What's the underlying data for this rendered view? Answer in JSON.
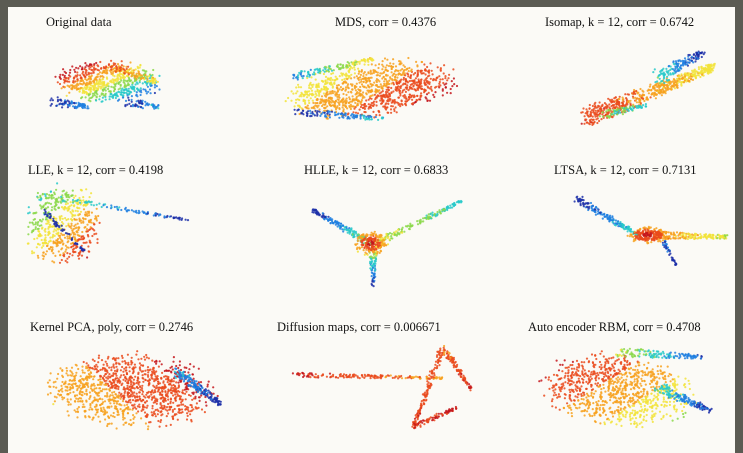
{
  "panels": [
    {
      "title": "Original data",
      "shape": "original"
    },
    {
      "title": "MDS, corr = 0.4376",
      "shape": "mds"
    },
    {
      "title": "Isomap, k = 12, corr = 0.6742",
      "shape": "isomap"
    },
    {
      "title": "LLE, k = 12, corr = 0.4198",
      "shape": "lle"
    },
    {
      "title": "HLLE, k = 12, corr = 0.6833",
      "shape": "hlle"
    },
    {
      "title": "LTSA, k = 12, corr = 0.7131",
      "shape": "ltsa"
    },
    {
      "title": "Kernel PCA, poly, corr = 0.2746",
      "shape": "kpca"
    },
    {
      "title": "Diffusion maps, corr = 0.006671",
      "shape": "diffusion"
    },
    {
      "title": "Auto encoder RBM, corr = 0.4708",
      "shape": "autoenc"
    }
  ],
  "colors": {
    "page_background": "#5b5b53",
    "frame_background": "#fbfaf6",
    "colormap": [
      "#1c2fa8",
      "#1f7fe0",
      "#27c9c9",
      "#8bd84a",
      "#f2e33a",
      "#f7a11f",
      "#ea4a1c",
      "#c4161c"
    ]
  }
}
